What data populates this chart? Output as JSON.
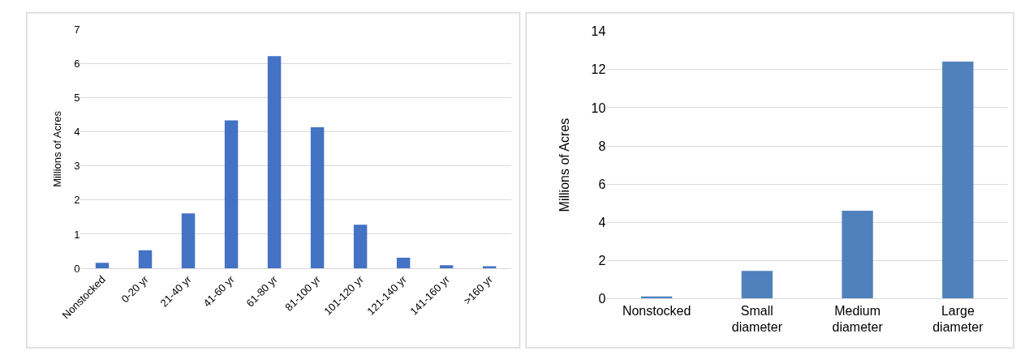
{
  "chart_data": [
    {
      "type": "bar",
      "categories": [
        "Nonstocked",
        "0-20 yr",
        "21-40 yr",
        "41-60 yr",
        "61-80 yr",
        "81-100 yr",
        "101-120 yr",
        "121-140 yr",
        "141-160 yr",
        ">160 yr"
      ],
      "values": [
        0.16,
        0.53,
        1.61,
        4.34,
        6.23,
        4.14,
        1.28,
        0.31,
        0.09,
        0.06
      ],
      "color": "#4472c4",
      "ylabel": "Millions of Acres",
      "ylim": [
        0,
        7
      ],
      "yticks": [
        0,
        1,
        2,
        3,
        4,
        5,
        6,
        7
      ],
      "grid": "y"
    },
    {
      "type": "bar",
      "categories": [
        "Nonstocked",
        "Small diameter",
        "Medium diameter",
        "Large diameter"
      ],
      "values": [
        0.11,
        1.45,
        4.6,
        12.42
      ],
      "color": "#4f81bd",
      "ylabel": "Millions of Acres",
      "ylim": [
        0,
        14
      ],
      "yticks": [
        0,
        2,
        4,
        6,
        8,
        10,
        12,
        14
      ],
      "grid": "y"
    }
  ]
}
